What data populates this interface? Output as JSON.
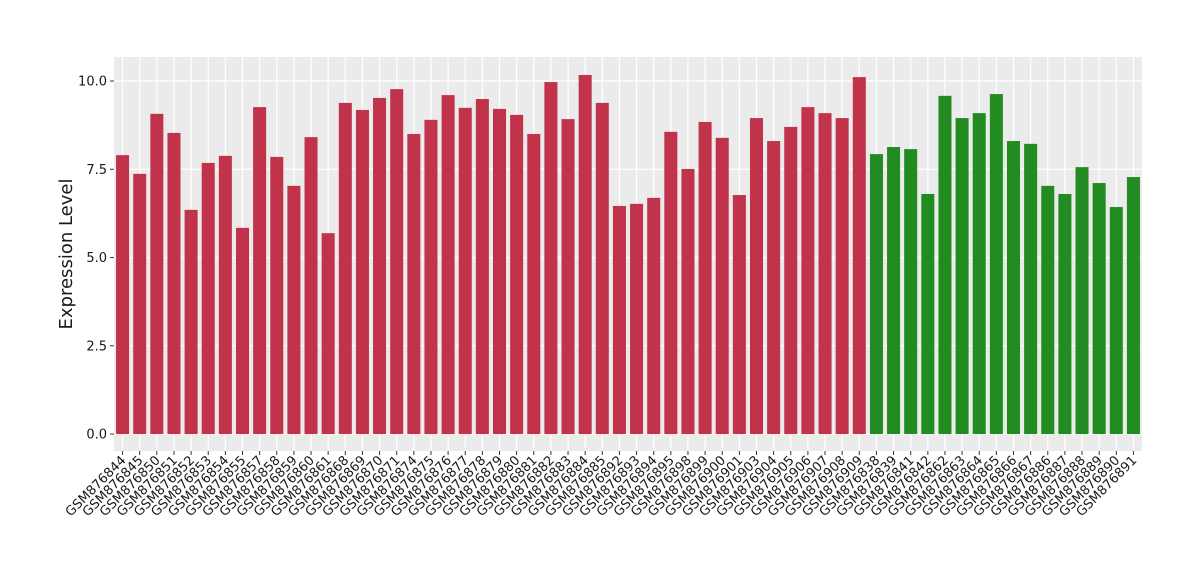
{
  "chart_data": {
    "type": "bar",
    "y_label": "Expression Level",
    "categories": [
      "GSM876844",
      "GSM876845",
      "GSM876850",
      "GSM876851",
      "GSM876852",
      "GSM876853",
      "GSM876854",
      "GSM876855",
      "GSM876857",
      "GSM876858",
      "GSM876859",
      "GSM876860",
      "GSM876861",
      "GSM876868",
      "GSM876869",
      "GSM876870",
      "GSM876871",
      "GSM876874",
      "GSM876875",
      "GSM876876",
      "GSM876877",
      "GSM876878",
      "GSM876879",
      "GSM876880",
      "GSM876881",
      "GSM876882",
      "GSM876883",
      "GSM876884",
      "GSM876885",
      "GSM876892",
      "GSM876893",
      "GSM876894",
      "GSM876895",
      "GSM876898",
      "GSM876899",
      "GSM876900",
      "GSM876901",
      "GSM876903",
      "GSM876904",
      "GSM876905",
      "GSM876906",
      "GSM876907",
      "GSM876908",
      "GSM876909",
      "GSM876838",
      "GSM876839",
      "GSM876841",
      "GSM876842",
      "GSM876862",
      "GSM876863",
      "GSM876864",
      "GSM876865",
      "GSM876866",
      "GSM876867",
      "GSM876886",
      "GSM876887",
      "GSM876888",
      "GSM876889",
      "GSM876890",
      "GSM876891"
    ],
    "values": [
      7.9,
      7.37,
      9.07,
      8.53,
      6.35,
      7.68,
      7.88,
      5.84,
      9.26,
      7.85,
      7.03,
      8.41,
      5.69,
      9.38,
      9.18,
      9.52,
      9.77,
      8.5,
      8.9,
      9.6,
      9.24,
      9.49,
      9.21,
      9.04,
      8.5,
      9.97,
      8.92,
      10.17,
      9.38,
      6.46,
      6.52,
      6.69,
      8.56,
      7.51,
      8.84,
      8.39,
      6.77,
      8.95,
      8.3,
      8.7,
      9.26,
      9.09,
      8.95,
      10.11,
      7.93,
      8.13,
      8.07,
      6.8,
      9.58,
      8.95,
      9.09,
      9.63,
      8.3,
      8.22,
      7.03,
      6.8,
      7.56,
      7.11,
      6.43,
      7.28
    ],
    "colors": [
      "#c0334a",
      "#c0334a",
      "#c0334a",
      "#c0334a",
      "#c0334a",
      "#c0334a",
      "#c0334a",
      "#c0334a",
      "#c0334a",
      "#c0334a",
      "#c0334a",
      "#c0334a",
      "#c0334a",
      "#c0334a",
      "#c0334a",
      "#c0334a",
      "#c0334a",
      "#c0334a",
      "#c0334a",
      "#c0334a",
      "#c0334a",
      "#c0334a",
      "#c0334a",
      "#c0334a",
      "#c0334a",
      "#c0334a",
      "#c0334a",
      "#c0334a",
      "#c0334a",
      "#c0334a",
      "#c0334a",
      "#c0334a",
      "#c0334a",
      "#c0334a",
      "#c0334a",
      "#c0334a",
      "#c0334a",
      "#c0334a",
      "#c0334a",
      "#c0334a",
      "#c0334a",
      "#c0334a",
      "#c0334a",
      "#c0334a",
      "#228b22",
      "#228b22",
      "#228b22",
      "#228b22",
      "#228b22",
      "#228b22",
      "#228b22",
      "#228b22",
      "#228b22",
      "#228b22",
      "#228b22",
      "#228b22",
      "#228b22",
      "#228b22",
      "#228b22",
      "#228b22"
    ],
    "ylim": [
      -0.48,
      10.68
    ],
    "yticks": [
      {
        "value": 0,
        "label": "0.0"
      },
      {
        "value": 2.5,
        "label": "2.5"
      },
      {
        "value": 5,
        "label": "5.0"
      },
      {
        "value": 7.5,
        "label": "7.5"
      },
      {
        "value": 10,
        "label": "10.0"
      }
    ],
    "grid": true
  }
}
